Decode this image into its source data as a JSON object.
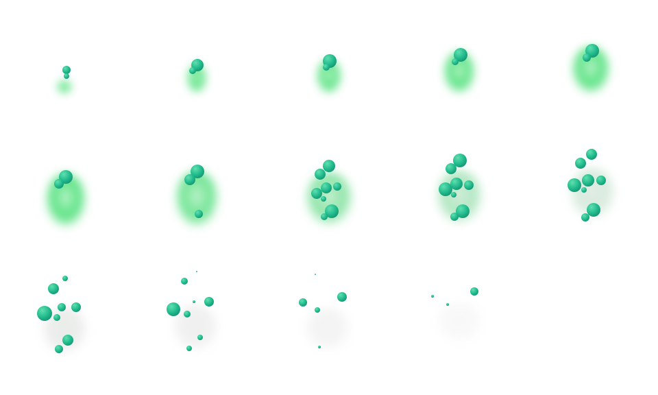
{
  "sprite_sheet": {
    "frame_count": 14,
    "columns": 5,
    "rows": 3,
    "colors": {
      "background": "#ffffff",
      "smoke_green": "#4fe07a",
      "smoke_gray": "#d8dcd9",
      "bubble_light": "#5fe0b0",
      "bubble_mid": "#1fb88a",
      "bubble_dark": "#0e7a66"
    }
  }
}
